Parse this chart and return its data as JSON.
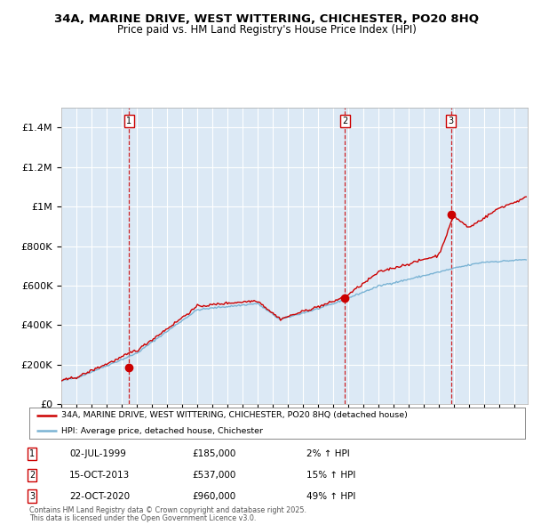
{
  "title1": "34A, MARINE DRIVE, WEST WITTERING, CHICHESTER, PO20 8HQ",
  "title2": "Price paid vs. HM Land Registry's House Price Index (HPI)",
  "bg_color": "#dce9f5",
  "ylim": [
    0,
    1500000
  ],
  "yticks": [
    0,
    200000,
    400000,
    600000,
    800000,
    1000000,
    1200000,
    1400000
  ],
  "ytick_labels": [
    "£0",
    "£200K",
    "£400K",
    "£600K",
    "£800K",
    "£1M",
    "£1.2M",
    "£1.4M"
  ],
  "xlim_start": 1995,
  "xlim_end": 2025.9,
  "sale_dates": [
    1999.5,
    2013.79,
    2020.81
  ],
  "sale_prices": [
    185000,
    537000,
    960000
  ],
  "sale_labels": [
    "1",
    "2",
    "3"
  ],
  "sale_annotations": [
    [
      "1",
      "02-JUL-1999",
      "£185,000",
      "2% ↑ HPI"
    ],
    [
      "2",
      "15-OCT-2013",
      "£537,000",
      "15% ↑ HPI"
    ],
    [
      "3",
      "22-OCT-2020",
      "£960,000",
      "49% ↑ HPI"
    ]
  ],
  "legend_line1": "34A, MARINE DRIVE, WEST WITTERING, CHICHESTER, PO20 8HQ (detached house)",
  "legend_line2": "HPI: Average price, detached house, Chichester",
  "footer1": "Contains HM Land Registry data © Crown copyright and database right 2025.",
  "footer2": "This data is licensed under the Open Government Licence v3.0.",
  "hpi_color": "#7ab3d4",
  "price_color": "#cc0000",
  "dashed_color": "#cc0000"
}
